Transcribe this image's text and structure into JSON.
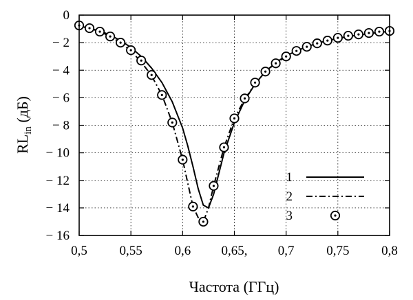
{
  "chart_data": {
    "type": "line",
    "title": "",
    "xlabel": "Частота (ГГц)",
    "ylabel": "RL",
    "ylabel_sub": "in",
    "ylabel_unit": " (дБ)",
    "xlim": [
      0.5,
      0.8
    ],
    "ylim": [
      -16,
      0
    ],
    "grid": true,
    "grid_style": "dotted",
    "legend_position": "lower-right",
    "x_ticks": [
      {
        "value": 0.5,
        "label": "0,5"
      },
      {
        "value": 0.55,
        "label": "0,55"
      },
      {
        "value": 0.6,
        "label": "0,6"
      },
      {
        "value": 0.65,
        "label": "0,65,"
      },
      {
        "value": 0.7,
        "label": "0,7"
      },
      {
        "value": 0.75,
        "label": "0,75"
      },
      {
        "value": 0.8,
        "label": "0,8"
      }
    ],
    "y_ticks": [
      {
        "value": 0,
        "label": "0"
      },
      {
        "value": -2,
        "label": "− 2"
      },
      {
        "value": -4,
        "label": "− 4"
      },
      {
        "value": -6,
        "label": "− 6"
      },
      {
        "value": -8,
        "label": "− 8"
      },
      {
        "value": -10,
        "label": "− 10"
      },
      {
        "value": -12,
        "label": "− 12"
      },
      {
        "value": -14,
        "label": "− 14"
      },
      {
        "value": -16,
        "label": "− 16"
      }
    ],
    "series": [
      {
        "name": "1",
        "style": "solid",
        "color": "#000000",
        "x": [
          0.5,
          0.51,
          0.52,
          0.53,
          0.54,
          0.55,
          0.56,
          0.57,
          0.58,
          0.59,
          0.6,
          0.605,
          0.61,
          0.615,
          0.62,
          0.625,
          0.63,
          0.635,
          0.64,
          0.65,
          0.66,
          0.67,
          0.68,
          0.69,
          0.7,
          0.71,
          0.72,
          0.73,
          0.74,
          0.75,
          0.76,
          0.77,
          0.78,
          0.79,
          0.8
        ],
        "y": [
          -0.8,
          -0.95,
          -1.15,
          -1.45,
          -1.85,
          -2.35,
          -3.0,
          -3.85,
          -4.9,
          -6.3,
          -8.2,
          -9.5,
          -11.0,
          -12.6,
          -13.8,
          -14.0,
          -13.0,
          -11.5,
          -10.0,
          -7.8,
          -6.2,
          -5.0,
          -4.1,
          -3.45,
          -2.95,
          -2.6,
          -2.3,
          -2.05,
          -1.85,
          -1.7,
          -1.55,
          -1.45,
          -1.35,
          -1.25,
          -1.18
        ]
      },
      {
        "name": "2",
        "style": "dashdot",
        "color": "#000000",
        "x": [
          0.5,
          0.51,
          0.52,
          0.53,
          0.54,
          0.55,
          0.56,
          0.57,
          0.58,
          0.59,
          0.6,
          0.605,
          0.61,
          0.615,
          0.62,
          0.625,
          0.63,
          0.64,
          0.65,
          0.66,
          0.67,
          0.68,
          0.69,
          0.7,
          0.71,
          0.72,
          0.73,
          0.74,
          0.75,
          0.76,
          0.77,
          0.78,
          0.79,
          0.8
        ],
        "y": [
          -0.8,
          -0.95,
          -1.2,
          -1.55,
          -2.0,
          -2.6,
          -3.4,
          -4.4,
          -5.8,
          -7.8,
          -10.5,
          -12.2,
          -13.9,
          -14.7,
          -15.0,
          -14.0,
          -12.4,
          -9.6,
          -7.5,
          -6.1,
          -5.0,
          -4.1,
          -3.5,
          -3.0,
          -2.6,
          -2.3,
          -2.05,
          -1.85,
          -1.7,
          -1.55,
          -1.45,
          -1.35,
          -1.25,
          -1.18
        ]
      },
      {
        "name": "3",
        "style": "circles",
        "color": "#000000",
        "x": [
          0.5,
          0.51,
          0.52,
          0.53,
          0.54,
          0.55,
          0.56,
          0.57,
          0.58,
          0.59,
          0.6,
          0.61,
          0.62,
          0.63,
          0.64,
          0.65,
          0.66,
          0.67,
          0.68,
          0.69,
          0.7,
          0.71,
          0.72,
          0.73,
          0.74,
          0.75,
          0.76,
          0.77,
          0.78,
          0.79,
          0.8
        ],
        "y": [
          -0.75,
          -0.95,
          -1.2,
          -1.55,
          -2.0,
          -2.55,
          -3.3,
          -4.35,
          -5.8,
          -7.8,
          -10.5,
          -13.9,
          -15.0,
          -12.4,
          -9.6,
          -7.5,
          -6.05,
          -4.9,
          -4.1,
          -3.5,
          -3.0,
          -2.6,
          -2.3,
          -2.05,
          -1.85,
          -1.65,
          -1.5,
          -1.4,
          -1.3,
          -1.2,
          -1.15
        ]
      }
    ],
    "legend": [
      {
        "label": "1",
        "style": "solid"
      },
      {
        "label": "2",
        "style": "dashdot"
      },
      {
        "label": "3",
        "style": "circles"
      }
    ]
  }
}
